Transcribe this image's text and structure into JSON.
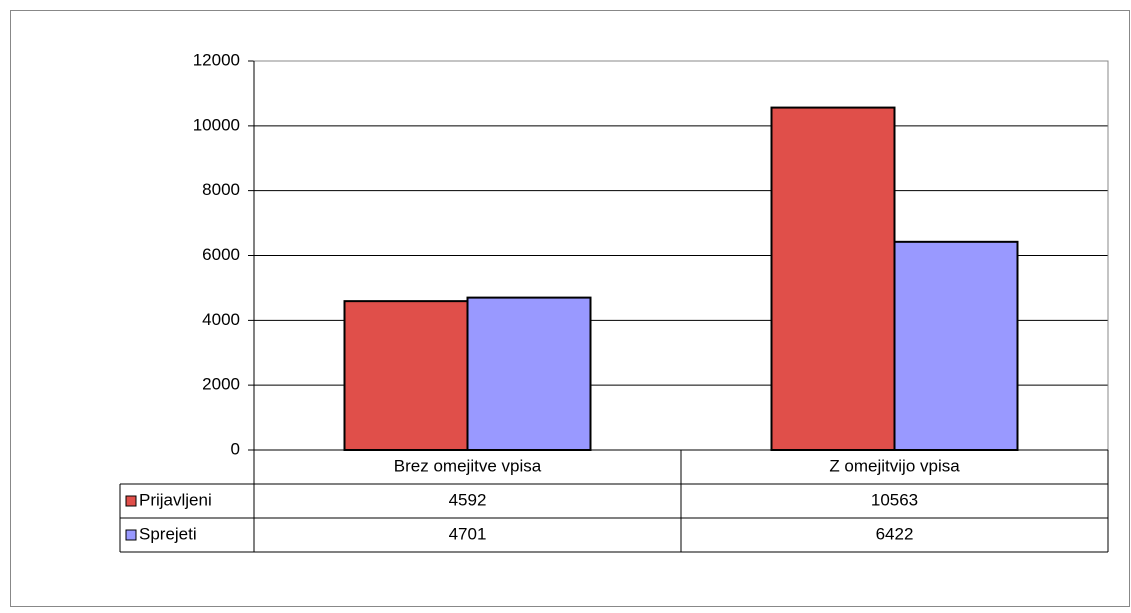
{
  "chart_data": {
    "type": "bar",
    "categories": [
      "Brez omejitve vpisa",
      "Z omejitvijo vpisa"
    ],
    "series": [
      {
        "name": "Prijavljeni",
        "color": "#e04f4a",
        "values": [
          4592,
          10563
        ]
      },
      {
        "name": "Sprejeti",
        "color": "#9999ff",
        "values": [
          4701,
          6422
        ]
      }
    ],
    "ylim": [
      0,
      12000
    ],
    "yticks": [
      0,
      2000,
      4000,
      6000,
      8000,
      10000,
      12000
    ],
    "grid": true,
    "data_table": true
  }
}
